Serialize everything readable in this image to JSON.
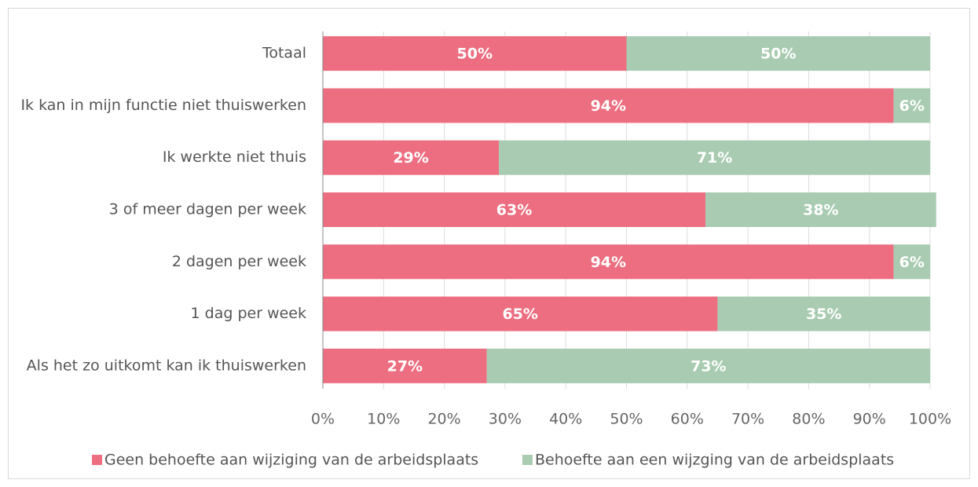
{
  "chart_data": {
    "type": "stacked-barh",
    "categories": [
      "Totaal",
      "Ik kan in mijn functie niet thuiswerken",
      "Ik werkte niet thuis",
      "3 of meer dagen per week",
      "2 dagen per week",
      "1 dag per week",
      "Als het zo uitkomt kan ik thuiswerken"
    ],
    "series": [
      {
        "name": "Geen behoefte aan wijziging van de arbeidsplaats",
        "color": "#ed6e80",
        "values": [
          50,
          94,
          29,
          63,
          94,
          65,
          27
        ],
        "value_labels": [
          "50%",
          "94%",
          "29%",
          "63%",
          "94%",
          "65%",
          "27%"
        ]
      },
      {
        "name": "Behoefte aan een wijzging van de arbeidsplaats",
        "color": "#a8cbb1",
        "values": [
          50,
          6,
          71,
          38,
          6,
          35,
          73
        ],
        "value_labels": [
          "50%",
          "6%",
          "71%",
          "38%",
          "6%",
          "35%",
          "73%"
        ]
      }
    ],
    "xlim": [
      0,
      100
    ],
    "xticks": [
      {
        "value": 0,
        "label": "0%"
      },
      {
        "value": 10,
        "label": "10%"
      },
      {
        "value": 20,
        "label": "20%"
      },
      {
        "value": 30,
        "label": "30%"
      },
      {
        "value": 40,
        "label": "40%"
      },
      {
        "value": 50,
        "label": "50%"
      },
      {
        "value": 60,
        "label": "60%"
      },
      {
        "value": 70,
        "label": "70%"
      },
      {
        "value": 80,
        "label": "80%"
      },
      {
        "value": 90,
        "label": "90%"
      },
      {
        "value": 100,
        "label": "100%"
      }
    ],
    "grid": true,
    "legend": "bottom"
  }
}
